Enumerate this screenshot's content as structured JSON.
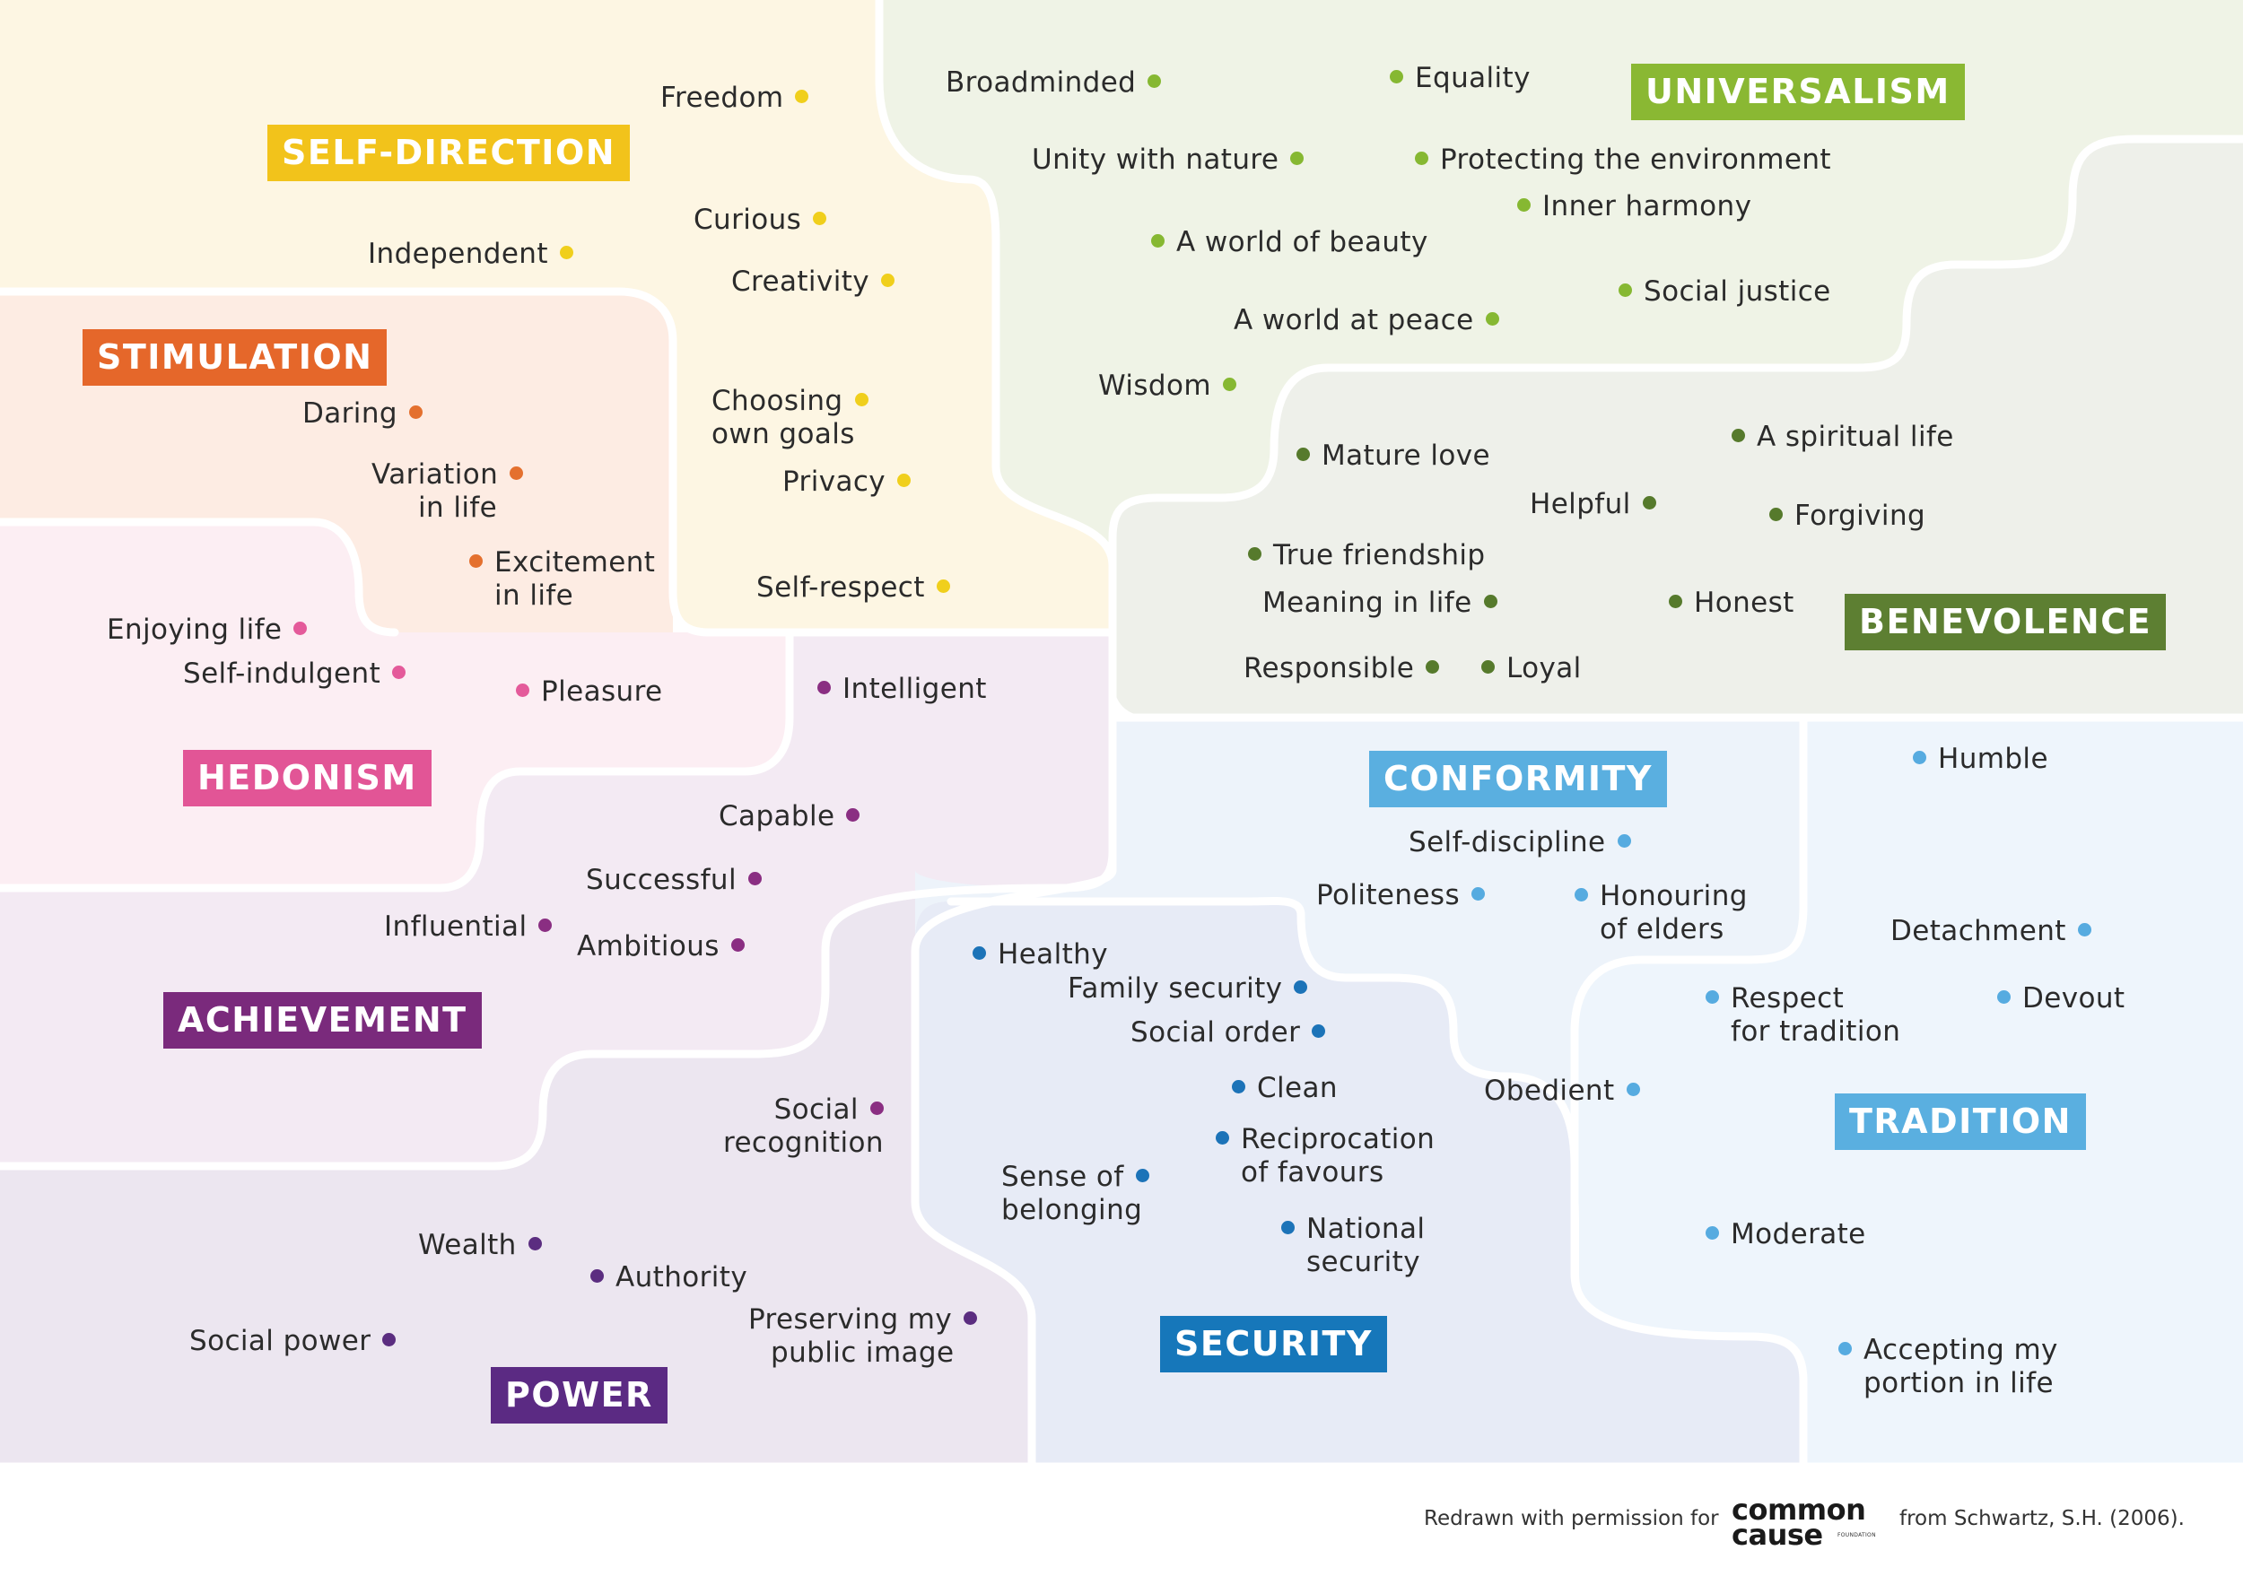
{
  "colors": {
    "self_direction": "#f2c31b",
    "stimulation": "#e5672a",
    "hedonism": "#e25596",
    "achievement": "#7a2a7c",
    "power": "#5b2a83",
    "security": "#1677ba",
    "conformity": "#5aafe0",
    "tradition": "#5aafe0",
    "benevolence": "#5d7f32",
    "universalism": "#8ab833",
    "dot_self_direction": "#f0cf1c",
    "dot_stimulation": "#e4702e",
    "dot_hedonism": "#e45a9a",
    "dot_achievement": "#8a2e82",
    "dot_power": "#5b2d80",
    "dot_security": "#1c73b8",
    "dot_conformity": "#56abe0",
    "dot_benevolence": "#567a2c",
    "dot_universalism": "#86b832"
  },
  "categories": {
    "self_direction": "SELF-DIRECTION",
    "stimulation": "STIMULATION",
    "hedonism": "HEDONISM",
    "achievement": "ACHIEVEMENT",
    "power": "POWER",
    "security": "SECURITY",
    "conformity": "CONFORMITY",
    "tradition": "TRADITION",
    "benevolence": "BENEVOLENCE",
    "universalism": "UNIVERSALISM"
  },
  "values": {
    "freedom": "Freedom",
    "independent": "Independent",
    "curious": "Curious",
    "creativity": "Creativity",
    "choosing_1": "Choosing",
    "choosing_2": "own goals",
    "privacy": "Privacy",
    "self_respect": "Self-respect",
    "daring": "Daring",
    "variation_1": "Variation",
    "variation_2": "in life",
    "excitement_1": "Excitement",
    "excitement_2": "in life",
    "enjoying_life": "Enjoying life",
    "self_indulgent": "Self-indulgent",
    "pleasure": "Pleasure",
    "intelligent": "Intelligent",
    "capable": "Capable",
    "successful": "Successful",
    "influential": "Influential",
    "ambitious": "Ambitious",
    "social_recognition_1": "Social",
    "social_recognition_2": "recognition",
    "wealth": "Wealth",
    "authority": "Authority",
    "social_power": "Social power",
    "public_image_1": "Preserving my",
    "public_image_2": "public image",
    "healthy": "Healthy",
    "family_security": "Family security",
    "social_order": "Social order",
    "clean": "Clean",
    "reciprocation_1": "Reciprocation",
    "reciprocation_2": "of favours",
    "belonging_1": "Sense of",
    "belonging_2": "belonging",
    "national_1": "National",
    "national_2": "security",
    "self_discipline": "Self-discipline",
    "politeness": "Politeness",
    "honouring_1": "Honouring",
    "honouring_2": "of elders",
    "obedient": "Obedient",
    "humble": "Humble",
    "detachment": "Detachment",
    "respect_tradition_1": "Respect",
    "respect_tradition_2": "for tradition",
    "devout": "Devout",
    "moderate": "Moderate",
    "accepting_1": "Accepting my",
    "accepting_2": "portion in life",
    "broadminded": "Broadminded",
    "equality": "Equality",
    "unity_nature": "Unity with nature",
    "protecting_env": "Protecting the environment",
    "inner_harmony": "Inner harmony",
    "world_beauty": "A world of beauty",
    "social_justice": "Social justice",
    "world_peace": "A world at peace",
    "wisdom": "Wisdom",
    "mature_love": "Mature love",
    "spiritual_life": "A spiritual life",
    "helpful": "Helpful",
    "forgiving": "Forgiving",
    "true_friendship": "True friendship",
    "meaning_life": "Meaning in life",
    "honest": "Honest",
    "responsible": "Responsible",
    "loyal": "Loyal"
  },
  "footer": {
    "credit": "Redrawn with permission for",
    "logo_line1": "common",
    "logo_line2": "cause",
    "logo_sub": "FOUNDATION",
    "source": "from Schwartz, S.H. (2006)."
  }
}
